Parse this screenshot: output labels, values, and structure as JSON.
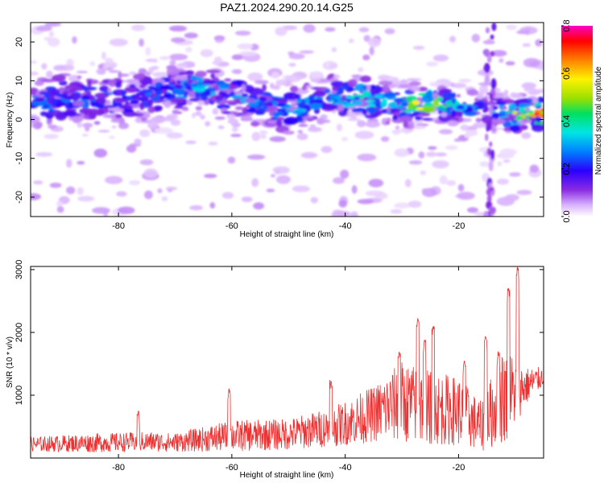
{
  "title": "PAZ1.2024.290.20.14.G25",
  "chart_data": [
    {
      "type": "heatmap",
      "xlabel": "Height of straight line (km)",
      "ylabel": "Frequency (Hz)",
      "xlim": [
        -95.5,
        -5
      ],
      "ylim": [
        -25,
        25
      ],
      "xticks": [
        -80,
        -60,
        -40,
        -20
      ],
      "yticks": [
        -20,
        -10,
        0,
        10,
        20
      ],
      "colorbar": {
        "label": "Normalized spectral amplitude",
        "range": [
          0,
          0.8
        ],
        "ticks": [
          "0.0",
          "0.2",
          "0.4",
          "0.6",
          "0.8"
        ]
      },
      "ridge": [
        {
          "x": -94,
          "f": 4.5,
          "a": 0.25
        },
        {
          "x": -88,
          "f": 5.5,
          "a": 0.2
        },
        {
          "x": -82,
          "f": 5,
          "a": 0.22
        },
        {
          "x": -76,
          "f": 6,
          "a": 0.2
        },
        {
          "x": -70,
          "f": 7.5,
          "a": 0.25
        },
        {
          "x": -66,
          "f": 9,
          "a": 0.3
        },
        {
          "x": -60,
          "f": 6,
          "a": 0.3
        },
        {
          "x": -55,
          "f": 4,
          "a": 0.25
        },
        {
          "x": -50,
          "f": 2,
          "a": 0.3
        },
        {
          "x": -43,
          "f": 6,
          "a": 0.3
        },
        {
          "x": -36,
          "f": 5.5,
          "a": 0.4
        },
        {
          "x": -31,
          "f": 3.5,
          "a": 0.3
        },
        {
          "x": -27,
          "f": 4,
          "a": 0.6
        },
        {
          "x": -24,
          "f": 4.5,
          "a": 0.45
        },
        {
          "x": -20,
          "f": 3,
          "a": 0.3
        },
        {
          "x": -15,
          "f": 3,
          "a": 0.2
        },
        {
          "x": -11,
          "f": 1,
          "a": 0.45
        },
        {
          "x": -7,
          "f": 1.5,
          "a": 0.75
        }
      ]
    },
    {
      "type": "line",
      "xlabel": "Height of straight line (km)",
      "ylabel": "SNR (10 * v/v)",
      "xlim": [
        -95.5,
        -5
      ],
      "ylim": [
        0,
        3050
      ],
      "xticks": [
        -80,
        -60,
        -40,
        -20
      ],
      "yticks": [
        1000,
        2000,
        3000
      ],
      "color": "#ee3030",
      "envelope": [
        {
          "x": -95,
          "base": 220,
          "amp": 120
        },
        {
          "x": -85,
          "base": 240,
          "amp": 150
        },
        {
          "x": -75,
          "base": 260,
          "amp": 160
        },
        {
          "x": -70,
          "base": 250,
          "amp": 150
        },
        {
          "x": -60,
          "base": 350,
          "amp": 250
        },
        {
          "x": -50,
          "base": 380,
          "amp": 250
        },
        {
          "x": -42,
          "base": 500,
          "amp": 320
        },
        {
          "x": -35,
          "base": 700,
          "amp": 450
        },
        {
          "x": -30,
          "base": 900,
          "amp": 650
        },
        {
          "x": -25,
          "base": 800,
          "amp": 600
        },
        {
          "x": -20,
          "base": 750,
          "amp": 550
        },
        {
          "x": -16,
          "base": 500,
          "amp": 400
        },
        {
          "x": -12,
          "base": 1000,
          "amp": 800
        },
        {
          "x": -8,
          "base": 1150,
          "amp": 300
        },
        {
          "x": -5,
          "base": 1300,
          "amp": 150
        }
      ],
      "spikes": [
        {
          "x": -76.5,
          "y": 750
        },
        {
          "x": -60.5,
          "y": 1100
        },
        {
          "x": -42.5,
          "y": 1250
        },
        {
          "x": -30.5,
          "y": 1700
        },
        {
          "x": -27.2,
          "y": 2220
        },
        {
          "x": -26.0,
          "y": 1900
        },
        {
          "x": -24.5,
          "y": 2100
        },
        {
          "x": -19.0,
          "y": 1550
        },
        {
          "x": -15.2,
          "y": 1950
        },
        {
          "x": -13.0,
          "y": 1700
        },
        {
          "x": -11.2,
          "y": 2700
        },
        {
          "x": -9.6,
          "y": 3040
        }
      ]
    }
  ]
}
